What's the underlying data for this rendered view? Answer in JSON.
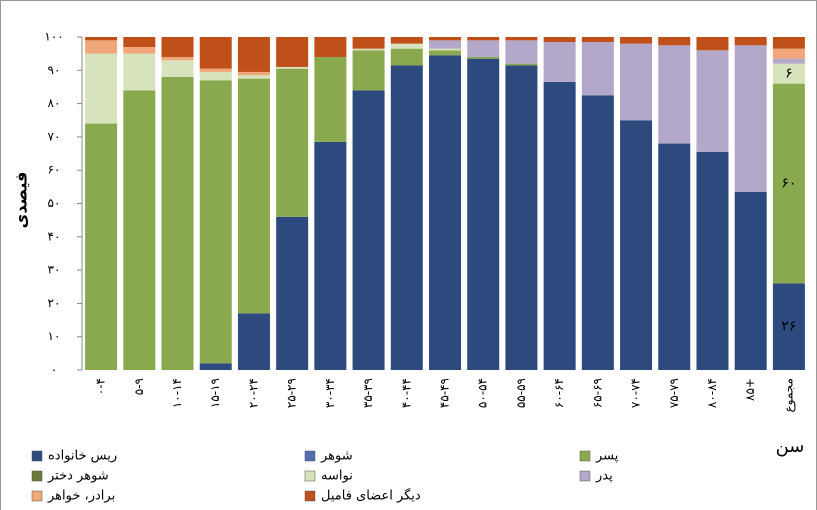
{
  "chart_data": {
    "type": "bar",
    "stacked": true,
    "y_label": "فیصدی",
    "x_label": "سن",
    "categories": [
      "۰-۴",
      "۵-۹",
      "۱۰-۱۴",
      "۱۵-۱۹",
      "۲۰-۲۴",
      "۲۵-۲۹",
      "۳۰-۳۴",
      "۳۵-۳۹",
      "۴۰-۴۴",
      "۴۵-۴۹",
      "۵۰-۵۴",
      "۵۵-۵۹",
      "۶۰-۶۴",
      "۶۵-۶۹",
      "۷۰-۷۴",
      "۷۵-۷۹",
      "۸۰-۸۴",
      "۸۵+",
      "مجموع"
    ],
    "ylim": [
      0,
      100
    ],
    "yticks": [
      {
        "value": 0,
        "label": "٠"
      },
      {
        "value": 10,
        "label": "۱۰"
      },
      {
        "value": 20,
        "label": "۲۰"
      },
      {
        "value": 30,
        "label": "۳۰"
      },
      {
        "value": 40,
        "label": "۴۰"
      },
      {
        "value": 50,
        "label": "۵۰"
      },
      {
        "value": 60,
        "label": "۶۰"
      },
      {
        "value": 70,
        "label": "۷۰"
      },
      {
        "value": 80,
        "label": "۸۰"
      },
      {
        "value": 90,
        "label": "۹۰"
      },
      {
        "value": 100,
        "label": "۱۰۰"
      }
    ],
    "series": [
      {
        "name": "ریس خانواده",
        "color": "#2c4a7e",
        "values": [
          0,
          0,
          0,
          2,
          17,
          46,
          68.5,
          84,
          91.5,
          94.5,
          93.5,
          91.5,
          86.5,
          82.5,
          75,
          68,
          65.5,
          53.5,
          26
        ],
        "value_labels": [
          null,
          null,
          null,
          null,
          null,
          null,
          null,
          null,
          null,
          null,
          null,
          null,
          null,
          null,
          null,
          null,
          null,
          null,
          "۲۶"
        ]
      },
      {
        "name": "شوهر",
        "color": "#4f6fb0",
        "values": [
          0,
          0,
          0,
          0,
          0,
          0,
          0,
          0,
          0,
          0,
          0,
          0,
          0,
          0,
          0,
          0,
          0,
          0,
          0
        ]
      },
      {
        "name": "پسر",
        "color": "#8aa84e",
        "values": [
          74,
          84,
          88,
          85,
          70.5,
          44.5,
          25.5,
          12,
          5,
          1.5,
          0.5,
          0.5,
          0,
          0,
          0,
          0,
          0,
          0,
          60
        ],
        "value_labels": [
          null,
          null,
          null,
          null,
          null,
          null,
          null,
          null,
          null,
          null,
          null,
          null,
          null,
          null,
          null,
          null,
          null,
          null,
          "۶۰"
        ]
      },
      {
        "name": "شوهر دختر",
        "color": "#6b7a3a",
        "values": [
          0,
          0,
          0,
          0,
          0,
          0,
          0,
          0,
          0,
          0,
          0,
          0,
          0,
          0,
          0,
          0,
          0,
          0,
          0
        ]
      },
      {
        "name": "نواسه",
        "color": "#d6e3bc",
        "values": [
          21,
          11,
          5,
          2.5,
          1,
          0.5,
          0,
          0.5,
          1.5,
          0.5,
          0,
          0,
          0,
          0,
          0,
          0,
          0,
          0,
          6
        ],
        "value_labels": [
          null,
          null,
          null,
          null,
          null,
          null,
          null,
          null,
          null,
          null,
          null,
          null,
          null,
          null,
          null,
          null,
          null,
          null,
          "۶"
        ]
      },
      {
        "name": "پدر",
        "color": "#b3a8c9",
        "values": [
          0,
          0,
          0,
          0,
          0,
          0,
          0,
          0,
          0,
          2.5,
          5,
          7,
          12,
          16,
          23,
          29.5,
          30.5,
          44,
          1.5
        ]
      },
      {
        "name": "برادر، خواهر",
        "color": "#f2a77a",
        "values": [
          4,
          2,
          1,
          1,
          1,
          0,
          0,
          0,
          0,
          0,
          0,
          0,
          0,
          0,
          0,
          0,
          0,
          0,
          3
        ]
      },
      {
        "name": "دیگر اعضای فامیل",
        "color": "#c0501a",
        "values": [
          1,
          3,
          6,
          9.5,
          10.5,
          9,
          6,
          3.5,
          2,
          1,
          1,
          1,
          1.5,
          1.5,
          2,
          2.5,
          4,
          2.5,
          3.5
        ]
      }
    ]
  }
}
